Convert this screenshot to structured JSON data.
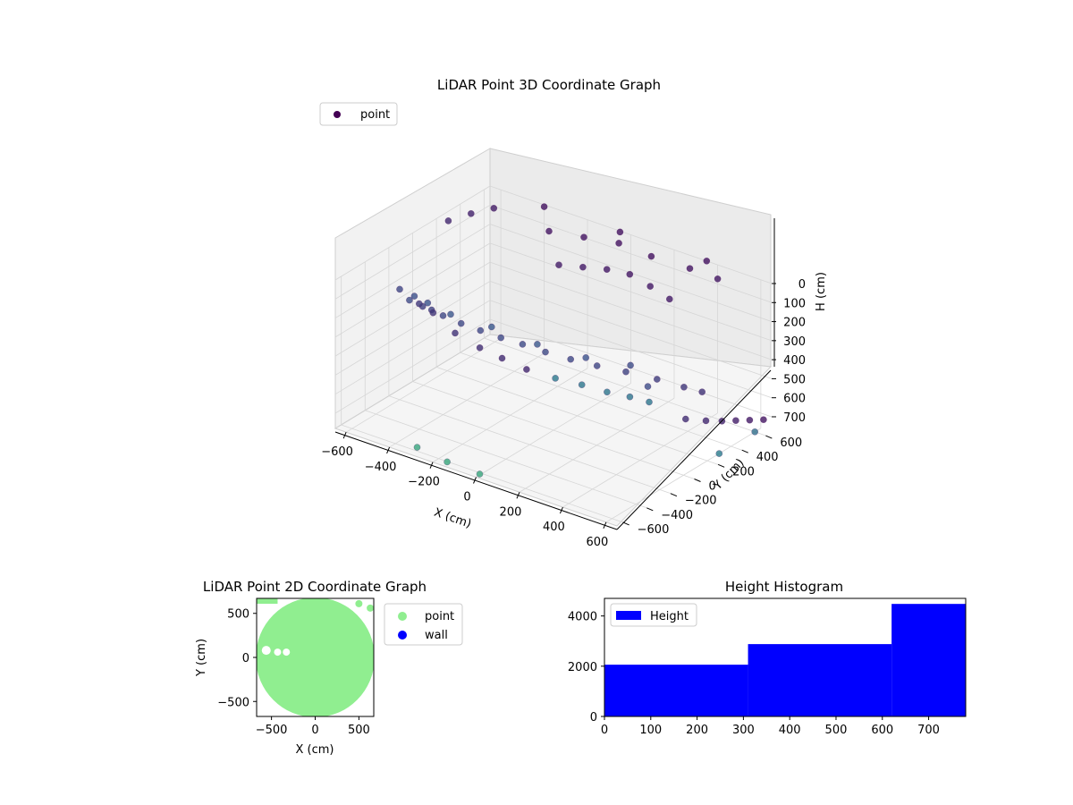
{
  "chart_data": [
    {
      "type": "scatter",
      "projection": "3d",
      "title": "LiDAR Point 3D Coordinate Graph",
      "xlabel": "X (cm)",
      "ylabel": "Y (cm)",
      "zlabel": "H (cm)",
      "x_ticks": [
        "−600",
        "−400",
        "−200",
        "0",
        "200",
        "400",
        "600"
      ],
      "y_ticks": [
        "−600",
        "−400",
        "−200",
        "0",
        "200",
        "400",
        "600"
      ],
      "z_ticks": [
        "0",
        "100",
        "200",
        "300",
        "400",
        "500",
        "600",
        "700"
      ],
      "xlim": [
        -650,
        650
      ],
      "ylim": [
        -650,
        650
      ],
      "zlim": [
        0,
        780
      ],
      "z_axis_inverted": true,
      "grid": true,
      "legend": {
        "placement": "top-left",
        "entries": [
          {
            "label": "point",
            "color": "#440154"
          }
        ]
      },
      "colormap": "viridis",
      "series": [
        {
          "name": "point",
          "points": [
            [
              -620,
              0,
              360
            ],
            [
              -560,
              -80,
              320
            ],
            [
              -480,
              -150,
              280
            ],
            [
              -400,
              -200,
              260
            ],
            [
              -300,
              -230,
              250
            ],
            [
              -200,
              -250,
              240
            ],
            [
              -100,
              -260,
              235
            ],
            [
              0,
              -260,
              230
            ],
            [
              100,
              -250,
              235
            ],
            [
              200,
              -220,
              245
            ],
            [
              300,
              -180,
              255
            ],
            [
              400,
              -120,
              270
            ],
            [
              500,
              -40,
              300
            ],
            [
              580,
              40,
              340
            ],
            [
              620,
              120,
              380
            ],
            [
              -600,
              80,
              430
            ],
            [
              -520,
              120,
              520
            ],
            [
              -450,
              200,
              600
            ],
            [
              -380,
              260,
              650
            ],
            [
              -300,
              320,
              700
            ],
            [
              -200,
              380,
              730
            ],
            [
              -100,
              420,
              740
            ],
            [
              0,
              450,
              750
            ],
            [
              100,
              460,
              740
            ],
            [
              200,
              440,
              720
            ],
            [
              -250,
              500,
              200
            ],
            [
              -150,
              520,
              180
            ],
            [
              -50,
              540,
              160
            ],
            [
              50,
              550,
              150
            ],
            [
              150,
              540,
              170
            ],
            [
              250,
              520,
              190
            ],
            [
              -350,
              600,
              100
            ],
            [
              -200,
              620,
              80
            ],
            [
              -50,
              640,
              60
            ],
            [
              100,
              640,
              70
            ],
            [
              300,
              600,
              40
            ],
            [
              450,
              560,
              20
            ],
            [
              500,
              200,
              600
            ],
            [
              550,
              280,
              620
            ],
            [
              580,
              360,
              640
            ],
            [
              600,
              440,
              660
            ],
            [
              620,
              520,
              680
            ],
            [
              640,
              600,
              700
            ],
            [
              -650,
              300,
              50
            ],
            [
              -600,
              400,
              30
            ],
            [
              -550,
              500,
              20
            ],
            [
              -400,
              650,
              10
            ],
            [
              -50,
              650,
              5
            ],
            [
              350,
              650,
              0
            ],
            [
              -450,
              -350,
              120
            ],
            [
              -350,
              -420,
              90
            ],
            [
              -200,
              -500,
              60
            ],
            [
              0,
              -520,
              40
            ],
            [
              200,
              -500,
              60
            ],
            [
              380,
              -420,
              90
            ],
            [
              520,
              -300,
              120
            ],
            [
              -300,
              -600,
              760
            ],
            [
              -150,
              -620,
              770
            ],
            [
              0,
              -620,
              775
            ],
            [
              600,
              300,
              780
            ],
            [
              600,
              600,
              780
            ],
            [
              -600,
              -200,
              200
            ],
            [
              -500,
              -300,
              180
            ],
            [
              600,
              -300,
              200
            ]
          ]
        }
      ]
    },
    {
      "type": "scatter",
      "title": "LiDAR Point 2D Coordinate Graph",
      "xlabel": "X (cm)",
      "ylabel": "Y (cm)",
      "x_ticks": [
        "−500",
        "0",
        "500"
      ],
      "y_ticks": [
        "−500",
        "0",
        "500"
      ],
      "xlim": [
        -670,
        670
      ],
      "ylim": [
        -670,
        670
      ],
      "grid": false,
      "legend": {
        "placement": "outside-right",
        "entries": [
          {
            "label": "point",
            "color": "#90ee90"
          },
          {
            "label": "wall",
            "color": "#0000ff"
          }
        ]
      },
      "series": [
        {
          "name": "point",
          "color": "#90ee90",
          "fill_radius": 680
        },
        {
          "name": "wall",
          "color": "#0000ff",
          "points": []
        }
      ]
    },
    {
      "type": "bar",
      "histogram": true,
      "title": "Height Histogram",
      "x_ticks": [
        "0",
        "100",
        "200",
        "300",
        "400",
        "500",
        "600",
        "700"
      ],
      "y_ticks": [
        "0",
        "2000",
        "4000"
      ],
      "xlim": [
        0,
        780
      ],
      "ylim": [
        0,
        4700
      ],
      "grid": false,
      "legend": {
        "placement": "top-left",
        "entries": [
          {
            "label": "Height",
            "color": "#0000ff"
          }
        ]
      },
      "color": "#0000ff",
      "series": [
        {
          "name": "Height",
          "bins": [
            [
              0,
              310,
              2060
            ],
            [
              310,
              620,
              2880
            ],
            [
              620,
              780,
              4480
            ]
          ]
        }
      ]
    }
  ]
}
